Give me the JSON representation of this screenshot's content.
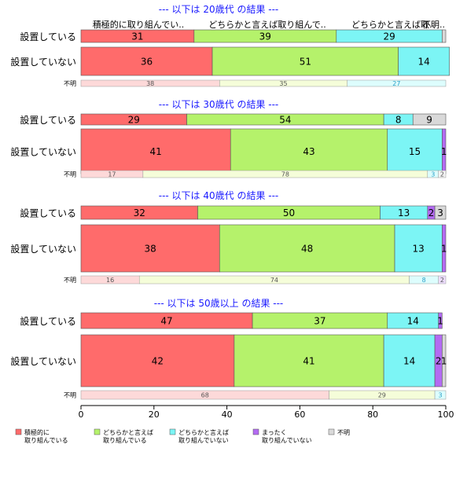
{
  "chart_data": {
    "type": "bar",
    "orientation": "horizontal",
    "stacked": true,
    "xlim": [
      0,
      100
    ],
    "x_ticks": [
      "0",
      "20",
      "40",
      "60",
      "80",
      "100"
    ],
    "column_headers": [
      "積極的に取り組んでい..",
      "どちらかと言えば取り組んで..",
      "どちらかと言えば取..",
      "不明.."
    ],
    "legend": {
      "placement": "bottom",
      "items": [
        {
          "label": "積極的に\n取り組んでいる",
          "color": "#FF6B6B"
        },
        {
          "label": "どちらかと言えば\n取り組んでいる",
          "color": "#B5F26B"
        },
        {
          "label": "どちらかと言えば\n取り組んでいない",
          "color": "#7CF5F5"
        },
        {
          "label": "まったく\n取り組んでいない",
          "color": "#B36BF2"
        },
        {
          "label": "不明",
          "color": "#D9D9D9"
        }
      ]
    },
    "unknown_colors": [
      "#FDD9D9",
      "#F5FDD9",
      "#DDFDFD",
      "#EDDDFD",
      "#F2F2F2"
    ],
    "panels": [
      {
        "title": "--- 以下は 20歳代 の結果 ---",
        "rows": [
          {
            "label": "設置している",
            "values": [
              31,
              39,
              29,
              0,
              1
            ],
            "shown": [
              "31",
              "39",
              "29",
              "",
              ""
            ]
          },
          {
            "label": "設置していない",
            "values": [
              36,
              51,
              14,
              0,
              0
            ],
            "shown": [
              "36",
              "51",
              "14",
              "",
              ""
            ]
          },
          {
            "label": "不明",
            "values": [
              38,
              35,
              27,
              0,
              0
            ],
            "shown": [
              "38",
              "35",
              "27",
              "",
              ""
            ]
          }
        ]
      },
      {
        "title": "--- 以下は 30歳代 の結果 ---",
        "rows": [
          {
            "label": "設置している",
            "values": [
              29,
              54,
              8,
              0,
              9
            ],
            "shown": [
              "29",
              "54",
              "8",
              "",
              "9"
            ]
          },
          {
            "label": "設置していない",
            "values": [
              41,
              43,
              15,
              1,
              0
            ],
            "shown": [
              "41",
              "43",
              "15",
              "1",
              ""
            ]
          },
          {
            "label": "不明",
            "values": [
              17,
              78,
              3,
              0,
              2
            ],
            "shown": [
              "17",
              "78",
              "3",
              "",
              "2"
            ]
          }
        ]
      },
      {
        "title": "--- 以下は 40歳代 の結果 ---",
        "rows": [
          {
            "label": "設置している",
            "values": [
              32,
              50,
              13,
              2,
              3
            ],
            "shown": [
              "32",
              "50",
              "13",
              "2",
              "3"
            ]
          },
          {
            "label": "設置していない",
            "values": [
              38,
              48,
              13,
              1,
              0
            ],
            "shown": [
              "38",
              "48",
              "13",
              "1",
              ""
            ]
          },
          {
            "label": "不明",
            "values": [
              16,
              74,
              8,
              2,
              0
            ],
            "shown": [
              "16",
              "74",
              "8",
              "2",
              ""
            ]
          }
        ]
      },
      {
        "title": "--- 以下は 50歳以上 の結果 ---",
        "rows": [
          {
            "label": "設置している",
            "values": [
              47,
              37,
              14,
              1,
              0
            ],
            "shown": [
              "47",
              "37",
              "14",
              "1",
              ""
            ]
          },
          {
            "label": "設置していない",
            "values": [
              42,
              41,
              14,
              2,
              1
            ],
            "shown": [
              "42",
              "41",
              "14",
              "2",
              "1"
            ]
          },
          {
            "label": "不明",
            "values": [
              68,
              29,
              3,
              0,
              0
            ],
            "shown": [
              "68",
              "29",
              "3",
              "",
              ""
            ]
          }
        ]
      }
    ]
  }
}
